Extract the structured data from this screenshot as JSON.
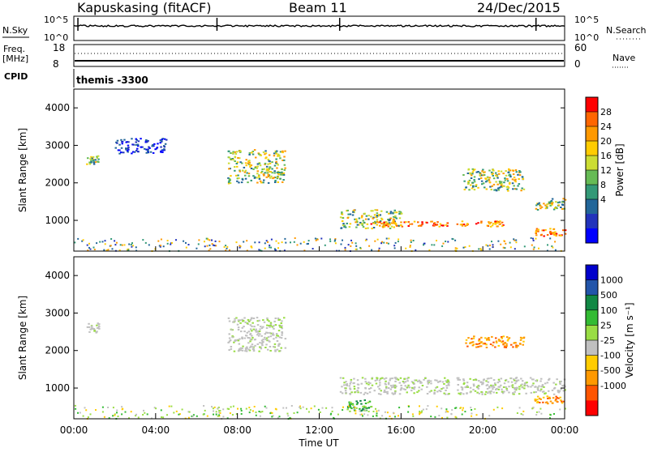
{
  "header": {
    "station": "Kapuskasing (fitACF)",
    "beam": "Beam 11",
    "date": "24/Dec/2015"
  },
  "strip_panels": {
    "noise": {
      "left_label": "N.Sky",
      "left_ticks": [
        "10^5",
        "10^0"
      ],
      "right_ticks": [
        "10^5",
        "10^0"
      ],
      "right_label": "N.Search"
    },
    "freq": {
      "left_label_top": "Freq.",
      "left_label_unit": "[MHz]",
      "left_ticks": [
        "18",
        "8"
      ],
      "right_ticks": [
        "60",
        "0"
      ],
      "right_label": "Nave"
    },
    "cpid": {
      "left_label": "CPID",
      "program": "themis -3300"
    }
  },
  "chart_data": [
    {
      "type": "heatmap",
      "name": "power",
      "ylabel": "Slant Range [km]",
      "ylim": [
        180,
        4500
      ],
      "yticks": [
        1000,
        2000,
        3000,
        4000
      ],
      "xlim": [
        0,
        24
      ],
      "colorbar": {
        "label": "Power [dB]",
        "ticks": [
          "28",
          "24",
          "20",
          "16",
          "12",
          "8",
          "4"
        ],
        "colors": [
          "#ff0000",
          "#ff6600",
          "#ff9900",
          "#ffcc00",
          "#ccdd33",
          "#66bb55",
          "#339977",
          "#226699",
          "#2233bb",
          "#0000ff"
        ]
      },
      "features": [
        {
          "t": [
            0.6,
            1.2
          ],
          "range": [
            2500,
            2750
          ],
          "level": "mid"
        },
        {
          "t": [
            2.0,
            4.5
          ],
          "range": [
            2800,
            3200
          ],
          "level": "low"
        },
        {
          "t": [
            7.5,
            10.3
          ],
          "range": [
            2000,
            2900
          ],
          "level": "mid"
        },
        {
          "t": [
            13.0,
            16.0
          ],
          "range": [
            800,
            1300
          ],
          "level": "mid"
        },
        {
          "t": [
            14.5,
            18.3
          ],
          "range": [
            850,
            1000
          ],
          "level": "high"
        },
        {
          "t": [
            18.7,
            21.0
          ],
          "range": [
            850,
            1000
          ],
          "level": "high"
        },
        {
          "t": [
            19.0,
            22.0
          ],
          "range": [
            1800,
            2400
          ],
          "level": "mid"
        },
        {
          "t": [
            22.5,
            24.0
          ],
          "range": [
            600,
            800
          ],
          "level": "high"
        },
        {
          "t": [
            22.5,
            24.0
          ],
          "range": [
            1300,
            1600
          ],
          "level": "mid"
        }
      ]
    },
    {
      "type": "heatmap",
      "name": "velocity",
      "ylabel": "Slant Range [km]",
      "ylim": [
        180,
        4500
      ],
      "yticks": [
        1000,
        2000,
        3000,
        4000
      ],
      "xlabel": "Time UT",
      "xlim": [
        0,
        24
      ],
      "xticks": [
        "00:00",
        "04:00",
        "08:00",
        "12:00",
        "16:00",
        "20:00",
        "00:00"
      ],
      "colorbar": {
        "label": "Velocity [m s⁻¹]",
        "ticks": [
          "1000",
          "500",
          "100",
          "25",
          "-25",
          "-100",
          "-500",
          "-1000"
        ],
        "colors": [
          "#0000cc",
          "#2255aa",
          "#118844",
          "#33bb33",
          "#99dd44",
          "#c0c0c0",
          "#ffcc00",
          "#ff9900",
          "#ff5500",
          "#ff0000"
        ]
      },
      "features": [
        {
          "t": [
            0.6,
            1.2
          ],
          "range": [
            2500,
            2750
          ],
          "velocity": "ground"
        },
        {
          "t": [
            7.5,
            10.3
          ],
          "range": [
            2000,
            2900
          ],
          "velocity": "ground"
        },
        {
          "t": [
            13.0,
            18.3
          ],
          "range": [
            850,
            1300
          ],
          "velocity": "ground"
        },
        {
          "t": [
            18.7,
            24.0
          ],
          "range": [
            850,
            1300
          ],
          "velocity": "ground"
        },
        {
          "t": [
            19.0,
            22.0
          ],
          "range": [
            2100,
            2400
          ],
          "velocity": "-100"
        },
        {
          "t": [
            22.5,
            24.0
          ],
          "range": [
            600,
            800
          ],
          "velocity": "-100"
        },
        {
          "t": [
            13.3,
            14.5
          ],
          "range": [
            400,
            700
          ],
          "velocity": "100"
        }
      ]
    }
  ]
}
